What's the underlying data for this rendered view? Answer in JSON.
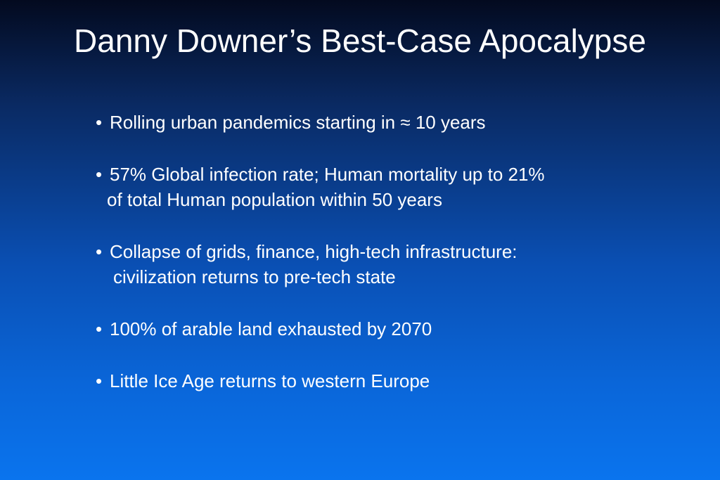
{
  "slide": {
    "title": "Danny Downer’s Best-Case Apocalypse",
    "bullet_glyph": "•",
    "bullets": [
      {
        "line1": "Rolling urban pandemics starting in ≈ 10 years"
      },
      {
        "line1": "57% Global infection rate; Human mortality up to 21%",
        "line2": "of total Human population within 50 years"
      },
      {
        "line1": "Collapse of grids, finance, high-tech infrastructure:",
        "line2": "civilization returns to pre-tech state"
      },
      {
        "line1": "100% of arable land exhausted by 2070"
      },
      {
        "line1": "Little Ice Age returns to western Europe"
      }
    ]
  },
  "colors": {
    "text": "#ffffff",
    "background_top": "#030a1f",
    "background_bottom": "#0a74ee"
  }
}
